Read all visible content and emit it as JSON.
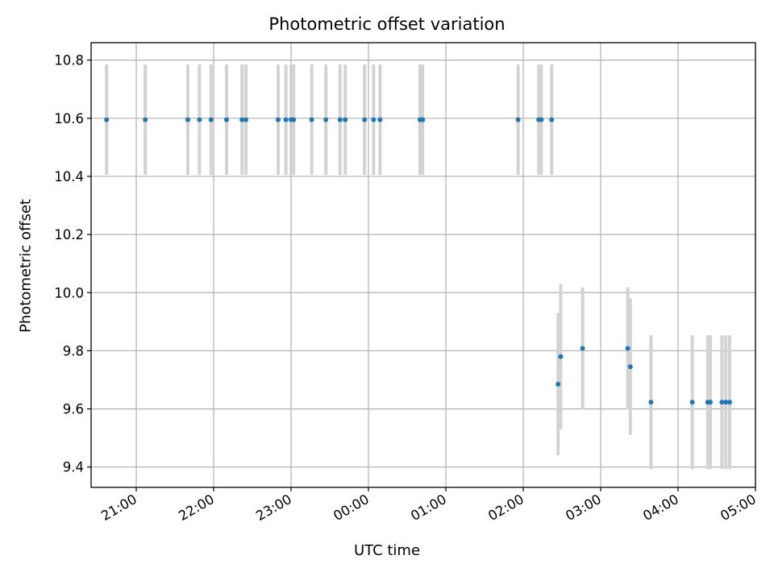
{
  "chart_data": {
    "type": "scatter",
    "title": "Photometric offset variation",
    "xlabel": "UTC time",
    "ylabel": "Photometric offset",
    "x_is_time": true,
    "x_ticks": [
      "21:00",
      "22:00",
      "23:00",
      "00:00",
      "01:00",
      "02:00",
      "03:00",
      "04:00",
      "05:00"
    ],
    "y_ticks": [
      "9.4",
      "9.6",
      "9.8",
      "10.0",
      "10.2",
      "10.4",
      "10.6",
      "10.8"
    ],
    "xlim": [
      "20:25",
      "05:00"
    ],
    "ylim": [
      9.33,
      10.86
    ],
    "grid": true,
    "marker_color": "#1f77b4",
    "errorbar_color": "#d3d3d3",
    "points": [
      {
        "x": "20:37",
        "y": 10.595,
        "err": 0.19
      },
      {
        "x": "21:07",
        "y": 10.595,
        "err": 0.19
      },
      {
        "x": "21:40",
        "y": 10.595,
        "err": 0.19
      },
      {
        "x": "21:49",
        "y": 10.595,
        "err": 0.19
      },
      {
        "x": "21:58",
        "y": 10.595,
        "err": 0.19
      },
      {
        "x": "22:10",
        "y": 10.595,
        "err": 0.19
      },
      {
        "x": "22:22",
        "y": 10.595,
        "err": 0.19
      },
      {
        "x": "22:25",
        "y": 10.595,
        "err": 0.19
      },
      {
        "x": "22:50",
        "y": 10.595,
        "err": 0.19
      },
      {
        "x": "22:56",
        "y": 10.595,
        "err": 0.19
      },
      {
        "x": "23:00",
        "y": 10.595,
        "err": 0.19
      },
      {
        "x": "23:02",
        "y": 10.595,
        "err": 0.19
      },
      {
        "x": "23:16",
        "y": 10.595,
        "err": 0.19
      },
      {
        "x": "23:27",
        "y": 10.595,
        "err": 0.19
      },
      {
        "x": "23:38",
        "y": 10.595,
        "err": 0.19
      },
      {
        "x": "23:42",
        "y": 10.595,
        "err": 0.19
      },
      {
        "x": "23:57",
        "y": 10.595,
        "err": 0.19
      },
      {
        "x": "00:04",
        "y": 10.595,
        "err": 0.19
      },
      {
        "x": "00:09",
        "y": 10.595,
        "err": 0.19
      },
      {
        "x": "00:40",
        "y": 10.595,
        "err": 0.19
      },
      {
        "x": "00:42",
        "y": 10.595,
        "err": 0.19
      },
      {
        "x": "01:56",
        "y": 10.595,
        "err": 0.19
      },
      {
        "x": "02:12",
        "y": 10.595,
        "err": 0.19
      },
      {
        "x": "02:14",
        "y": 10.595,
        "err": 0.19
      },
      {
        "x": "02:22",
        "y": 10.595,
        "err": 0.19
      },
      {
        "x": "02:27",
        "y": 9.685,
        "err": 0.245
      },
      {
        "x": "02:29",
        "y": 9.78,
        "err": 0.25
      },
      {
        "x": "02:46",
        "y": 9.808,
        "err": 0.21
      },
      {
        "x": "03:21",
        "y": 9.808,
        "err": 0.21
      },
      {
        "x": "03:23",
        "y": 9.745,
        "err": 0.235
      },
      {
        "x": "03:39",
        "y": 9.623,
        "err": 0.23
      },
      {
        "x": "04:11",
        "y": 9.623,
        "err": 0.23
      },
      {
        "x": "04:23",
        "y": 9.623,
        "err": 0.23
      },
      {
        "x": "04:25",
        "y": 9.623,
        "err": 0.23
      },
      {
        "x": "04:34",
        "y": 9.623,
        "err": 0.23
      },
      {
        "x": "04:37",
        "y": 9.623,
        "err": 0.23
      },
      {
        "x": "04:40",
        "y": 9.623,
        "err": 0.23
      }
    ]
  }
}
